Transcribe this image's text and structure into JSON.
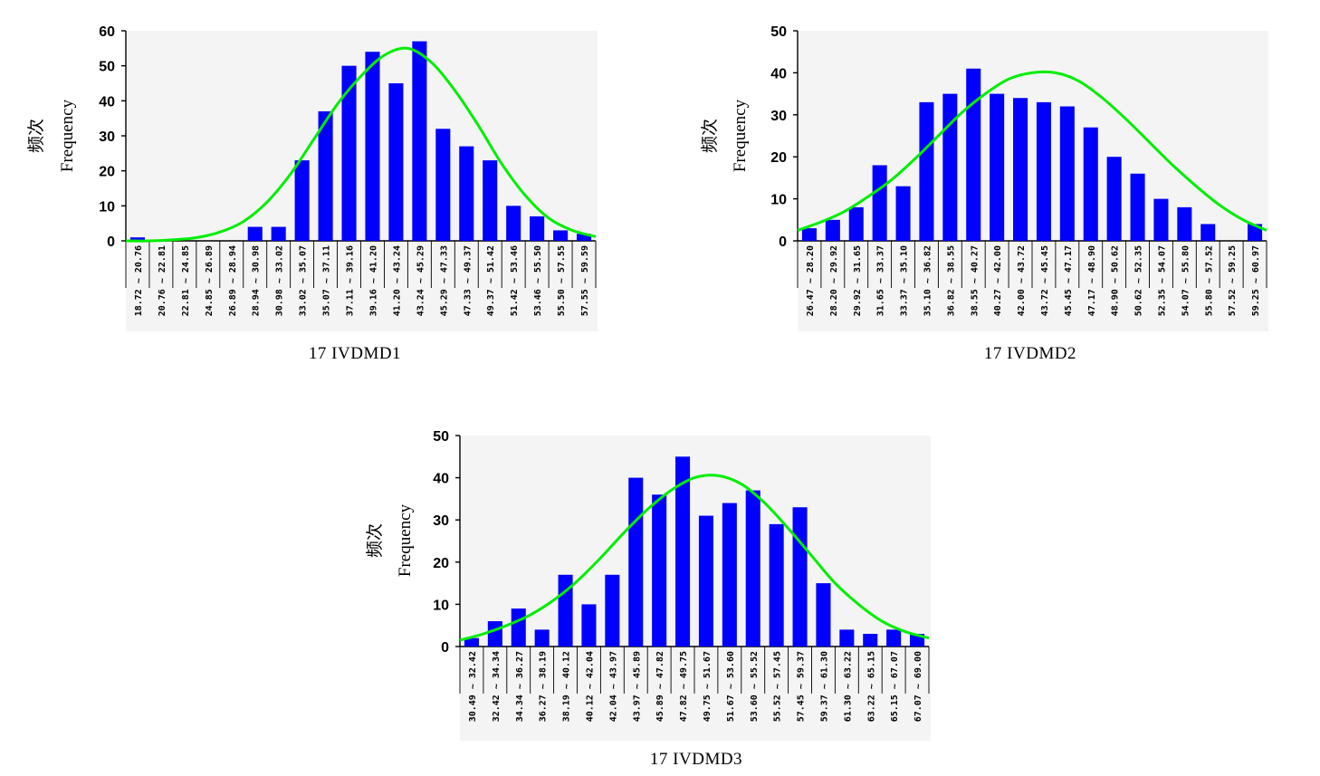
{
  "y_label_zh": "频次",
  "y_label_en": "Frequency",
  "colors": {
    "bar": "#0000ff",
    "curve": "#00ee00",
    "plot_bg": "#f4f4f4"
  },
  "chart_data": [
    {
      "type": "bar",
      "title": "17 IVDMD1",
      "ylabel": "频次 Frequency",
      "ylim": [
        0,
        60
      ],
      "yticks": [
        0,
        10,
        20,
        30,
        40,
        50,
        60
      ],
      "categories": [
        "18.72 ~ 20.76",
        "20.76 ~ 22.81",
        "22.81 ~ 24.85",
        "24.85 ~ 26.89",
        "26.89 ~ 28.94",
        "28.94 ~ 30.98",
        "30.98 ~ 33.02",
        "33.02 ~ 35.07",
        "35.07 ~ 37.11",
        "37.11 ~ 39.16",
        "39.16 ~ 41.20",
        "41.20 ~ 43.24",
        "43.24 ~ 45.29",
        "45.29 ~ 47.33",
        "47.33 ~ 49.37",
        "49.37 ~ 51.42",
        "51.42 ~ 53.46",
        "53.46 ~ 55.50",
        "55.50 ~ 57.55",
        "57.55 ~ 59.59"
      ],
      "values": [
        1,
        0,
        0,
        0,
        0,
        4,
        4,
        23,
        37,
        50,
        54,
        45,
        57,
        32,
        27,
        23,
        10,
        7,
        3,
        2
      ],
      "curve": [
        0,
        0,
        0.3,
        0.9,
        2.5,
        5.5,
        11,
        19,
        29,
        39,
        47,
        53,
        55,
        51,
        43,
        33,
        22,
        13,
        6.5,
        3,
        1.2
      ]
    },
    {
      "type": "bar",
      "title": "17 IVDMD2",
      "ylabel": "频次 Frequency",
      "ylim": [
        0,
        50
      ],
      "yticks": [
        0,
        10,
        20,
        30,
        40,
        50
      ],
      "categories": [
        "26.47 ~ 28.20",
        "28.20 ~ 29.92",
        "29.92 ~ 31.65",
        "31.65 ~ 33.37",
        "33.37 ~ 35.10",
        "35.10 ~ 36.82",
        "36.82 ~ 38.55",
        "38.55 ~ 40.27",
        "40.27 ~ 42.00",
        "42.00 ~ 43.72",
        "43.72 ~ 45.45",
        "45.45 ~ 47.17",
        "47.17 ~ 48.90",
        "48.90 ~ 50.62",
        "50.62 ~ 52.35",
        "52.35 ~ 54.07",
        "54.07 ~ 55.80",
        "55.80 ~ 57.52",
        "57.52 ~ 59.25",
        "59.25 ~ 60.97"
      ],
      "values": [
        3,
        5,
        8,
        18,
        13,
        33,
        35,
        41,
        35,
        34,
        33,
        32,
        27,
        20,
        16,
        10,
        8,
        4,
        0,
        4
      ],
      "curve": [
        2.5,
        4.5,
        7,
        10.5,
        14.5,
        19.5,
        25,
        30.5,
        35,
        38.5,
        40,
        40,
        38,
        34,
        29,
        23.5,
        18,
        13,
        8.5,
        5,
        2.5
      ]
    },
    {
      "type": "bar",
      "title": "17 IVDMD3",
      "ylabel": "频次 Frequency",
      "ylim": [
        0,
        50
      ],
      "yticks": [
        0,
        10,
        20,
        30,
        40,
        50
      ],
      "categories": [
        "30.49 ~ 32.42",
        "32.42 ~ 34.34",
        "34.34 ~ 36.27",
        "36.27 ~ 38.19",
        "38.19 ~ 40.12",
        "40.12 ~ 42.04",
        "42.04 ~ 43.97",
        "43.97 ~ 45.89",
        "45.89 ~ 47.82",
        "47.82 ~ 49.75",
        "49.75 ~ 51.67",
        "51.67 ~ 53.60",
        "53.60 ~ 55.52",
        "55.52 ~ 57.45",
        "57.45 ~ 59.37",
        "59.37 ~ 61.30",
        "61.30 ~ 63.22",
        "63.22 ~ 65.15",
        "65.15 ~ 67.07",
        "67.07 ~ 69.00"
      ],
      "values": [
        2,
        6,
        9,
        4,
        17,
        10,
        17,
        40,
        36,
        45,
        31,
        34,
        37,
        29,
        33,
        15,
        4,
        3,
        4,
        3
      ],
      "curve": [
        1.5,
        3,
        5,
        7.5,
        11,
        15.5,
        21,
        27,
        32.5,
        37,
        40,
        40.5,
        38.5,
        34,
        28,
        21.5,
        15,
        10,
        6,
        3.5,
        2
      ]
    }
  ]
}
